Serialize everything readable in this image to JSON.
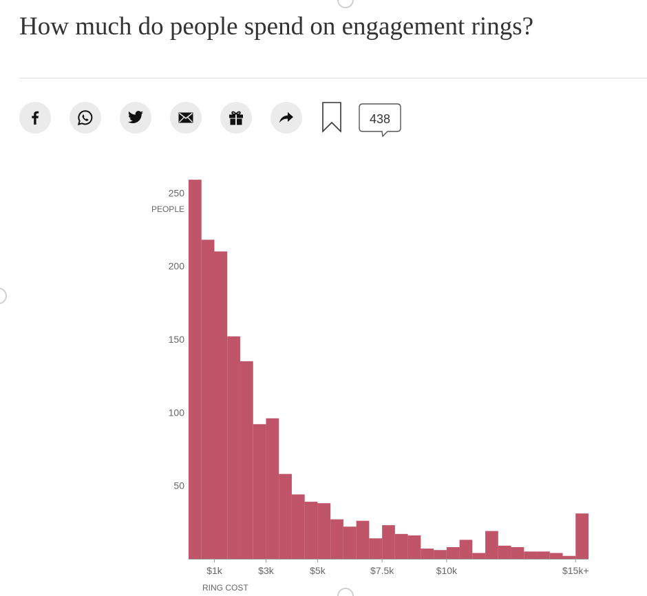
{
  "article": {
    "headline": "How much do people spend on engagement rings?"
  },
  "share_bar": {
    "buttons": [
      {
        "icon": "facebook-icon",
        "label": "f"
      },
      {
        "icon": "whatsapp-icon"
      },
      {
        "icon": "twitter-icon"
      },
      {
        "icon": "email-icon"
      },
      {
        "icon": "gift-icon"
      },
      {
        "icon": "share-icon"
      }
    ],
    "comment_count": "438"
  },
  "colors": {
    "bar": "#c0556a",
    "text": "#333333",
    "axis_label": "#666666",
    "button_bg": "#ebebeb"
  },
  "chart_data": {
    "type": "bar",
    "title": "How much do people spend on engagement rings?",
    "ylabel": "PEOPLE",
    "xlabel": "RING COST",
    "y_ticks": [
      50,
      100,
      150,
      200,
      250
    ],
    "y_tick_labels": [
      "50",
      "100",
      "150",
      "200",
      "250"
    ],
    "ylim": [
      0,
      260
    ],
    "xlim": [
      0,
      15500
    ],
    "bin_width": 500,
    "x_ticks": [
      1000,
      3000,
      5000,
      7500,
      10000,
      15000
    ],
    "x_tick_labels": [
      "$1k",
      "$3k",
      "$5k",
      "$7.5k",
      "$10k",
      "$15k+"
    ],
    "grid": "vertical",
    "bins_start": [
      0,
      500,
      1000,
      1500,
      2000,
      2500,
      3000,
      3500,
      4000,
      4500,
      5000,
      5500,
      6000,
      6500,
      7000,
      7500,
      8000,
      8500,
      9000,
      9500,
      10000,
      10500,
      11000,
      11500,
      12000,
      12500,
      13000,
      13500,
      14000,
      14500,
      15000
    ],
    "values": [
      259,
      218,
      210,
      152,
      135,
      92,
      96,
      58,
      44,
      39,
      38,
      27,
      22,
      26,
      14,
      23,
      17,
      16,
      7,
      6,
      8,
      13,
      4,
      19,
      9,
      8,
      5,
      5,
      4,
      2,
      31
    ]
  }
}
